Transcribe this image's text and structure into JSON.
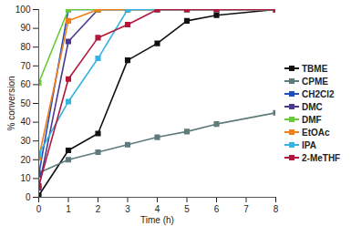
{
  "chart_data": {
    "type": "line",
    "x_label": "Time (h)",
    "y_label": "% conversion",
    "x": [
      0,
      1,
      2,
      3,
      4,
      5,
      6,
      8
    ],
    "series": [
      {
        "name": "TBME",
        "color": "#111111",
        "marker": "square",
        "values": [
          1,
          25,
          34,
          73,
          82,
          94,
          97,
          100
        ]
      },
      {
        "name": "CPME",
        "color": "#5e7b7b",
        "marker": "square",
        "values": [
          13,
          20,
          24,
          28,
          32,
          35,
          39,
          45
        ]
      },
      {
        "name": "CH2Cl2",
        "color": "#1f4fbf",
        "marker": "square",
        "values": [
          12,
          100,
          100,
          100,
          100,
          100,
          100,
          100
        ]
      },
      {
        "name": "DMC",
        "color": "#4b3a8f",
        "marker": "square",
        "values": [
          5,
          83,
          100,
          100,
          100,
          100,
          100,
          100
        ]
      },
      {
        "name": "DMF",
        "color": "#6acb3a",
        "marker": "square",
        "values": [
          61,
          100,
          100,
          100,
          100,
          100,
          100,
          100
        ]
      },
      {
        "name": "EtOAc",
        "color": "#f07e1b",
        "marker": "square",
        "values": [
          21,
          94,
          100,
          100,
          100,
          100,
          100,
          100
        ]
      },
      {
        "name": "IPA",
        "color": "#35b3e3",
        "marker": "square",
        "values": [
          23,
          51,
          74,
          100,
          100,
          100,
          100,
          100
        ]
      },
      {
        "name": "2-MeTHF",
        "color": "#b3163b",
        "marker": "square",
        "values": [
          6,
          63,
          85,
          92,
          100,
          100,
          100,
          100
        ]
      }
    ],
    "xlim": [
      0,
      8
    ],
    "xticks": [
      0,
      1,
      2,
      3,
      4,
      5,
      6,
      7,
      8
    ],
    "ylim": [
      0,
      100
    ],
    "yticks": [
      0,
      10,
      20,
      30,
      40,
      50,
      60,
      70,
      80,
      90,
      100
    ],
    "grid": false,
    "legend": "right"
  }
}
